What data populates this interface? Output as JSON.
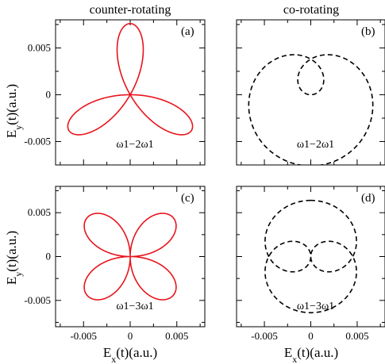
{
  "figure": {
    "column_titles": [
      "counter-rotating",
      "co-rotating"
    ],
    "xlabel": "E_x(t)(a.u.)",
    "ylabel": "E_y(t)(a.u.)"
  },
  "colors": {
    "counter": "#e8141c",
    "co": "#000000"
  },
  "chart_data": [
    {
      "type": "line",
      "panel": "(a)",
      "column": "counter-rotating",
      "curve": "rose-3-petal",
      "amplitude": 0.0038,
      "radial_max": 0.0076,
      "petal_directions_deg": [
        90,
        210,
        330
      ],
      "annotation": "ω1−2ω1",
      "line_style": "solid",
      "color": "#e8141c",
      "xlim": [
        -0.008,
        0.008
      ],
      "ylim": [
        -0.0075,
        0.008
      ],
      "yticks": [
        "0.005",
        "0",
        "-0.005"
      ],
      "ytick_values": [
        0.005,
        0,
        -0.005
      ]
    },
    {
      "type": "line",
      "panel": "(b)",
      "column": "co-rotating",
      "curve": "limacon-inner-loop",
      "amplitude": 0.0038,
      "extent_y": [
        -0.0076,
        0.0038
      ],
      "inner_loop_y": [
        0.0,
        0.0038
      ],
      "annotation": "ω1−2ω1",
      "line_style": "dashed",
      "color": "#000000",
      "xlim": [
        -0.008,
        0.008
      ],
      "ylim": [
        -0.0075,
        0.008
      ]
    },
    {
      "type": "line",
      "panel": "(c)",
      "column": "counter-rotating",
      "curve": "rose-4-petal",
      "amplitude": 0.0032,
      "radial_max": 0.0064,
      "petal_directions_deg": [
        45,
        135,
        225,
        315
      ],
      "annotation": "ω1−3ω1",
      "line_style": "solid",
      "color": "#e8141c",
      "xlim": [
        -0.008,
        0.008
      ],
      "ylim": [
        -0.008,
        0.008
      ],
      "xticks": [
        "-0.005",
        "0",
        "0.005"
      ],
      "xtick_values": [
        -0.005,
        0,
        0.005
      ],
      "yticks": [
        "0.005",
        "0",
        "-0.005"
      ],
      "ytick_values": [
        0.005,
        0,
        -0.005
      ]
    },
    {
      "type": "line",
      "panel": "(d)",
      "column": "co-rotating",
      "curve": "double-loop-circle",
      "amplitude": 0.0032,
      "outer_radius": 0.0064,
      "annotation": "ω1−3ω1",
      "line_style": "dashed",
      "color": "#000000",
      "xlim": [
        -0.008,
        0.008
      ],
      "ylim": [
        -0.008,
        0.008
      ],
      "xticks": [
        "-0.005",
        "0",
        "0.005"
      ],
      "xtick_values": [
        -0.005,
        0,
        0.005
      ]
    }
  ]
}
